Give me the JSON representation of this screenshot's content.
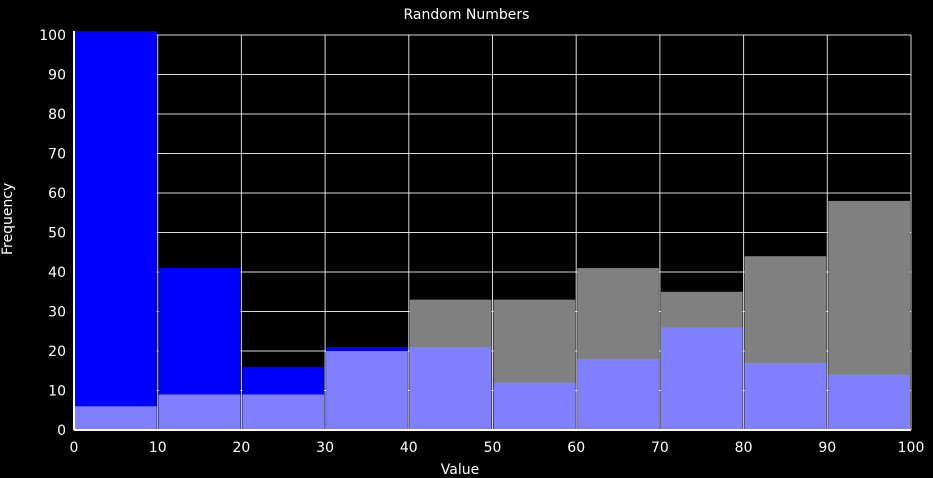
{
  "chart_data": {
    "type": "bar",
    "title": "Random Numbers",
    "xlabel": "Value",
    "ylabel": "Frequency",
    "xlim": [
      0,
      100
    ],
    "ylim": [
      0,
      100
    ],
    "x_ticks": [
      0,
      10,
      20,
      30,
      40,
      50,
      60,
      70,
      80,
      90,
      100
    ],
    "y_ticks": [
      0,
      10,
      20,
      30,
      40,
      50,
      60,
      70,
      80,
      90,
      100
    ],
    "bins": [
      [
        0,
        10
      ],
      [
        10,
        20
      ],
      [
        20,
        30
      ],
      [
        30,
        40
      ],
      [
        40,
        50
      ],
      [
        50,
        60
      ],
      [
        60,
        70
      ],
      [
        70,
        80
      ],
      [
        80,
        90
      ],
      [
        90,
        100
      ]
    ],
    "series": [
      {
        "color": "#808080",
        "values": [
          0,
          0,
          0,
          0,
          33,
          33,
          41,
          35,
          44,
          58
        ]
      },
      {
        "color": "#0000ff",
        "values": [
          101,
          41,
          16,
          21,
          0,
          0,
          0,
          0,
          0,
          0
        ]
      },
      {
        "color": "#8080ff",
        "values": [
          6,
          9,
          9,
          20,
          21,
          12,
          18,
          26,
          17,
          14
        ]
      }
    ],
    "grid": true,
    "background": "#000000",
    "grid_color": "#ffffff"
  }
}
